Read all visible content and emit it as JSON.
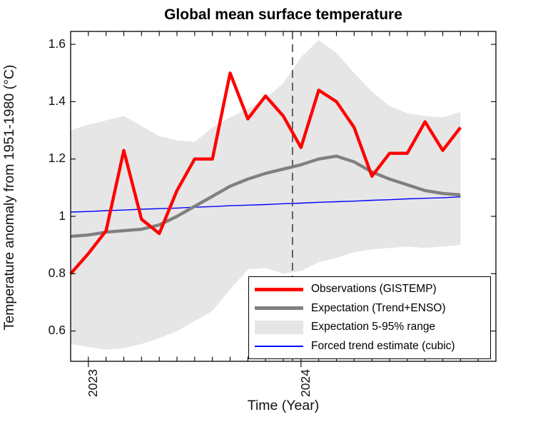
{
  "title": "Global mean surface temperature",
  "x_axis": {
    "label": "Time (Year)",
    "year_ticks": [
      {
        "label": "2023",
        "month_index": 1
      },
      {
        "label": "2024",
        "month_index": 13
      }
    ]
  },
  "y_axis": {
    "label": "Temperature anomaly from 1951-1980 (°C)",
    "ticks": [
      {
        "value": 0.6,
        "label": "0.6"
      },
      {
        "value": 0.8,
        "label": "0.8"
      },
      {
        "value": 1.0,
        "label": "1"
      },
      {
        "value": 1.2,
        "label": "1.2"
      },
      {
        "value": 1.4,
        "label": "1.4"
      },
      {
        "value": 1.6,
        "label": "1.6"
      }
    ]
  },
  "legend": {
    "entries": [
      {
        "label": "Observations (GISTEMP)",
        "swatch": "thick-red-line",
        "color": "#ff0000"
      },
      {
        "label": "Expectation (Trend+ENSO)",
        "swatch": "thick-gray-line",
        "color": "#808080"
      },
      {
        "label": "Expectation 5-95% range",
        "swatch": "light-gray-patch",
        "color": "#e6e6e6"
      },
      {
        "label": "Forced trend estimate (cubic)",
        "swatch": "thin-blue-line",
        "color": "#0000ff"
      }
    ]
  },
  "chart_data": {
    "type": "line",
    "title": "Global mean surface temperature",
    "xlabel": "Time (Year)",
    "ylabel": "Temperature anomaly from 1951-1980 (°C)",
    "ylim": [
      0.49,
      1.65
    ],
    "x_months_span": 24,
    "grid": false,
    "legend_position": "lower right inside",
    "forecast_divider": {
      "style": "dashed",
      "color": "#555555",
      "month_index": 12.52
    },
    "months": [
      "Dec 2022",
      "Jan 2023",
      "Feb 2023",
      "Mar 2023",
      "Apr 2023",
      "May 2023",
      "Jun 2023",
      "Jul 2023",
      "Aug 2023",
      "Sep 2023",
      "Oct 2023",
      "Nov 2023",
      "Dec 2023",
      "Jan 2024",
      "Feb 2024",
      "Mar 2024",
      "Apr 2024",
      "May 2024",
      "Jun 2024",
      "Jul 2024",
      "Aug 2024",
      "Sep 2024",
      "Oct 2024"
    ],
    "series": [
      {
        "name": "Observations (GISTEMP)",
        "kind": "line",
        "color": "#ff0000",
        "width": 4.4,
        "values": [
          0.8,
          0.87,
          0.95,
          1.23,
          0.99,
          0.94,
          1.09,
          1.2,
          1.2,
          1.5,
          1.34,
          1.42,
          1.35,
          1.24,
          1.44,
          1.4,
          1.31,
          1.14,
          1.22,
          1.22,
          1.33,
          1.23,
          1.31
        ]
      },
      {
        "name": "Expectation (Trend+ENSO)",
        "kind": "line",
        "color": "#808080",
        "width": 4.4,
        "values": [
          0.93,
          0.935,
          0.945,
          0.95,
          0.955,
          0.97,
          1.0,
          1.035,
          1.07,
          1.105,
          1.13,
          1.15,
          1.165,
          1.18,
          1.2,
          1.21,
          1.19,
          1.155,
          1.13,
          1.11,
          1.09,
          1.08,
          1.075
        ]
      },
      {
        "name": "Expectation 5-95% range",
        "kind": "band",
        "color": "#e6e6e6",
        "upper": [
          1.3,
          1.32,
          1.335,
          1.35,
          1.315,
          1.28,
          1.265,
          1.26,
          1.31,
          1.345,
          1.375,
          1.41,
          1.465,
          1.555,
          1.615,
          1.57,
          1.5,
          1.435,
          1.385,
          1.36,
          1.35,
          1.345,
          1.365
        ],
        "lower": [
          0.555,
          0.545,
          0.535,
          0.54,
          0.555,
          0.575,
          0.6,
          0.635,
          0.67,
          0.745,
          0.815,
          0.82,
          0.8,
          0.81,
          0.84,
          0.855,
          0.875,
          0.885,
          0.89,
          0.895,
          0.89,
          0.895,
          0.9
        ]
      },
      {
        "name": "Forced trend estimate (cubic)",
        "kind": "line",
        "color": "#0000ff",
        "width": 1.4,
        "values": [
          1.015,
          1.017,
          1.02,
          1.022,
          1.025,
          1.027,
          1.029,
          1.032,
          1.034,
          1.037,
          1.039,
          1.041,
          1.044,
          1.046,
          1.049,
          1.051,
          1.053,
          1.056,
          1.058,
          1.061,
          1.063,
          1.065,
          1.068
        ]
      }
    ]
  }
}
